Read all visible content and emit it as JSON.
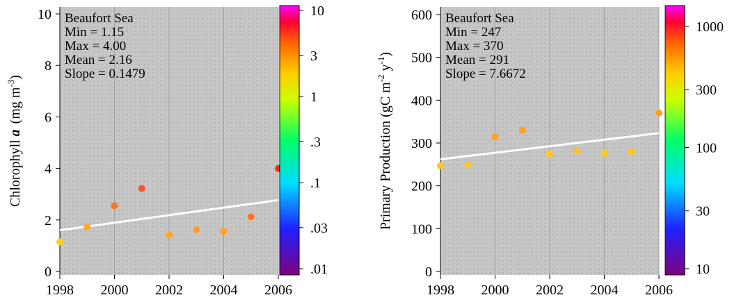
{
  "chart_data": [
    {
      "type": "scatter",
      "region": "Beaufort Sea",
      "stats": [
        "Min = 1.15",
        "Max = 4.00",
        "Mean = 2.16",
        "Slope = 0.1479"
      ],
      "ylabel_main": "Chlorophyll ",
      "ylabel_bold": "a",
      "ylabel_unit": "(mg m",
      "ylabel_exp": "-3",
      "ylabel_close": ")",
      "xlim": [
        1998,
        2006
      ],
      "ylim": [
        0,
        10
      ],
      "xticks": [
        "1998",
        "2000",
        "2002",
        "2004",
        "2006"
      ],
      "yticks": [
        "0",
        "2",
        "4",
        "6",
        "8",
        "10"
      ],
      "x": [
        1998,
        1999,
        2000,
        2001,
        2002,
        2003,
        2004,
        2005,
        2006
      ],
      "y": [
        1.15,
        1.73,
        2.55,
        3.22,
        1.42,
        1.62,
        1.55,
        2.12,
        4.0
      ],
      "trend": {
        "start": [
          1998,
          1.6
        ],
        "end": [
          2006,
          2.77
        ]
      },
      "colorbar": {
        "scale": "log",
        "range": [
          0.01,
          10
        ],
        "ticks": [
          {
            "value": 10,
            "label": "10"
          },
          {
            "value": 3,
            "label": "3"
          },
          {
            "value": 1,
            "label": "1"
          },
          {
            "value": 0.3,
            "label": ".3"
          },
          {
            "value": 0.1,
            "label": ".1"
          },
          {
            "value": 0.03,
            "label": ".03"
          },
          {
            "value": 0.01,
            "label": ".01"
          }
        ]
      },
      "colors": {
        "background": "#c8c8c8",
        "trend": "#ffffff"
      }
    },
    {
      "type": "scatter",
      "region": "Beaufort Sea",
      "stats": [
        "Min = 247",
        "Max = 370",
        "Mean = 291",
        "Slope = 7.6672"
      ],
      "ylabel_main": "Primary Production  (gC m",
      "ylabel_exp1": "-2",
      "ylabel_mid": " y",
      "ylabel_exp2": "-1",
      "ylabel_close": ")",
      "xlim": [
        1998,
        2006
      ],
      "ylim": [
        0,
        620
      ],
      "xticks": [
        "1998",
        "2000",
        "2002",
        "2004",
        "2006"
      ],
      "yticks": [
        "0",
        "100",
        "200",
        "300",
        "400",
        "500",
        "600"
      ],
      "x": [
        1998,
        1999,
        2000,
        2001,
        2002,
        2003,
        2004,
        2005,
        2006
      ],
      "y": [
        247,
        249,
        315,
        330,
        275,
        282,
        276,
        280,
        370
      ],
      "trend": {
        "start": [
          1998,
          262
        ],
        "end": [
          2006,
          323
        ]
      },
      "colorbar": {
        "scale": "log",
        "range": [
          10,
          1300
        ],
        "ticks": [
          {
            "value": 1000,
            "label": "1000"
          },
          {
            "value": 300,
            "label": "300"
          },
          {
            "value": 100,
            "label": "100"
          },
          {
            "value": 30,
            "label": "30"
          },
          {
            "value": 10,
            "label": "10"
          }
        ]
      },
      "colors": {
        "background": "#c8c8c8",
        "trend": "#ffffff"
      }
    }
  ]
}
